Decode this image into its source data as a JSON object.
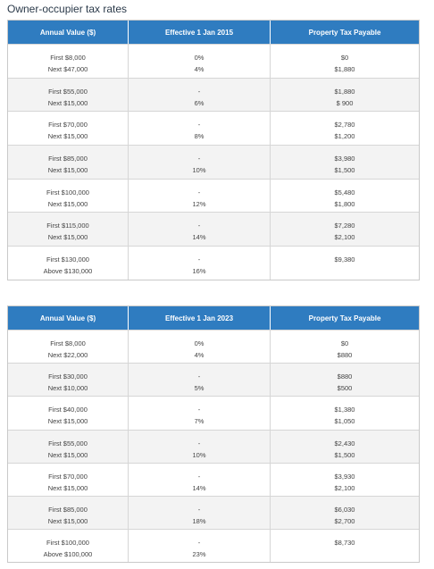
{
  "title": "Owner-occupier tax rates",
  "tables": [
    {
      "headers": [
        "Annual Value ($)",
        "Effective 1 Jan 2015",
        "Property Tax Payable"
      ],
      "rows": [
        [
          [
            "First $8,000",
            "Next $47,000"
          ],
          [
            "0%",
            "4%"
          ],
          [
            "$0",
            "$1,880"
          ]
        ],
        [
          [
            "First $55,000",
            "Next $15,000"
          ],
          [
            "-",
            "6%"
          ],
          [
            "$1,880",
            "$ 900"
          ]
        ],
        [
          [
            "First $70,000",
            "Next $15,000"
          ],
          [
            "-",
            "8%"
          ],
          [
            "$2,780",
            "$1,200"
          ]
        ],
        [
          [
            "First $85,000",
            "Next $15,000"
          ],
          [
            "-",
            "10%"
          ],
          [
            "$3,980",
            "$1,500"
          ]
        ],
        [
          [
            "First $100,000",
            "Next $15,000"
          ],
          [
            "-",
            "12%"
          ],
          [
            "$5,480",
            "$1,800"
          ]
        ],
        [
          [
            "First $115,000",
            "Next $15,000"
          ],
          [
            "-",
            "14%"
          ],
          [
            "$7,280",
            "$2,100"
          ]
        ],
        [
          [
            "First $130,000",
            "Above $130,000"
          ],
          [
            "-",
            "16%"
          ],
          [
            "$9,380"
          ]
        ]
      ]
    },
    {
      "headers": [
        "Annual Value ($)",
        "Effective 1 Jan 2023",
        "Property Tax Payable"
      ],
      "rows": [
        [
          [
            "First $8,000",
            "Next $22,000"
          ],
          [
            "0%",
            "4%"
          ],
          [
            "$0",
            "$880"
          ]
        ],
        [
          [
            "First $30,000",
            "Next $10,000"
          ],
          [
            "-",
            "5%"
          ],
          [
            "$880",
            "$500"
          ]
        ],
        [
          [
            "First $40,000",
            "Next $15,000"
          ],
          [
            "-",
            "7%"
          ],
          [
            "$1,380",
            "$1,050"
          ]
        ],
        [
          [
            "First $55,000",
            "Next $15,000"
          ],
          [
            "-",
            "10%"
          ],
          [
            "$2,430",
            "$1,500"
          ]
        ],
        [
          [
            "First $70,000",
            "Next $15,000"
          ],
          [
            "-",
            "14%"
          ],
          [
            "$3,930",
            "$2,100"
          ]
        ],
        [
          [
            "First $85,000",
            "Next $15,000"
          ],
          [
            "-",
            "18%"
          ],
          [
            "$6,030",
            "$2,700"
          ]
        ],
        [
          [
            "First $100,000",
            "Above $100,000"
          ],
          [
            "-",
            "23%"
          ],
          [
            "$8,730"
          ]
        ]
      ]
    }
  ]
}
